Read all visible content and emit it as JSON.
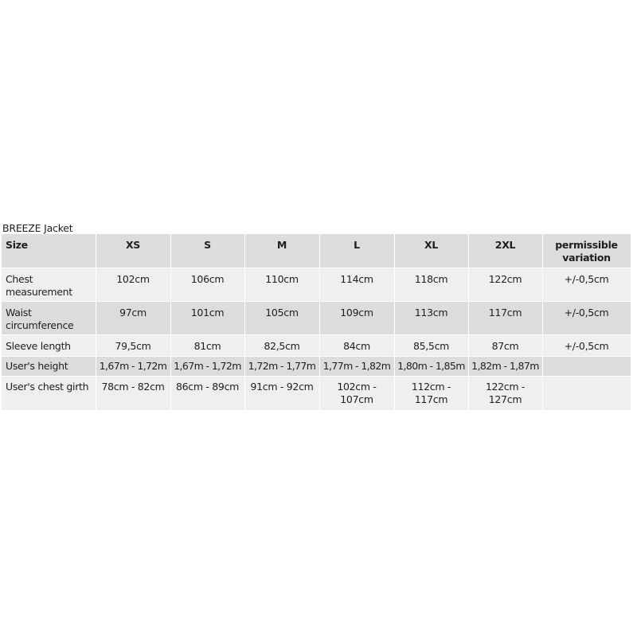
{
  "title": "BREEZE Jacket",
  "table": {
    "header": [
      "Size",
      "XS",
      "S",
      "M",
      "L",
      "XL",
      "2XL",
      "permissible variation"
    ],
    "rows": [
      [
        "Chest measurement",
        "102cm",
        "106cm",
        "110cm",
        "114cm",
        "118cm",
        "122cm",
        "+/-0,5cm"
      ],
      [
        "Waist circumference",
        "97cm",
        "101cm",
        "105cm",
        "109cm",
        "113cm",
        "117cm",
        "+/-0,5cm"
      ],
      [
        "Sleeve length",
        "79,5cm",
        "81cm",
        "82,5cm",
        "84cm",
        "85,5cm",
        "87cm",
        "+/-0,5cm"
      ],
      [
        "User's height",
        "1,67m - 1,72m",
        "1,67m - 1,72m",
        "1,72m - 1,77m",
        "1,77m - 1,82m",
        "1,80m - 1,85m",
        "1,82m - 1,87m",
        ""
      ],
      [
        "User's chest girth",
        "78cm - 82cm",
        "86cm - 89cm",
        "91cm - 92cm",
        "102cm - 107cm",
        "112cm - 117cm",
        "122cm - 127cm",
        ""
      ]
    ]
  }
}
